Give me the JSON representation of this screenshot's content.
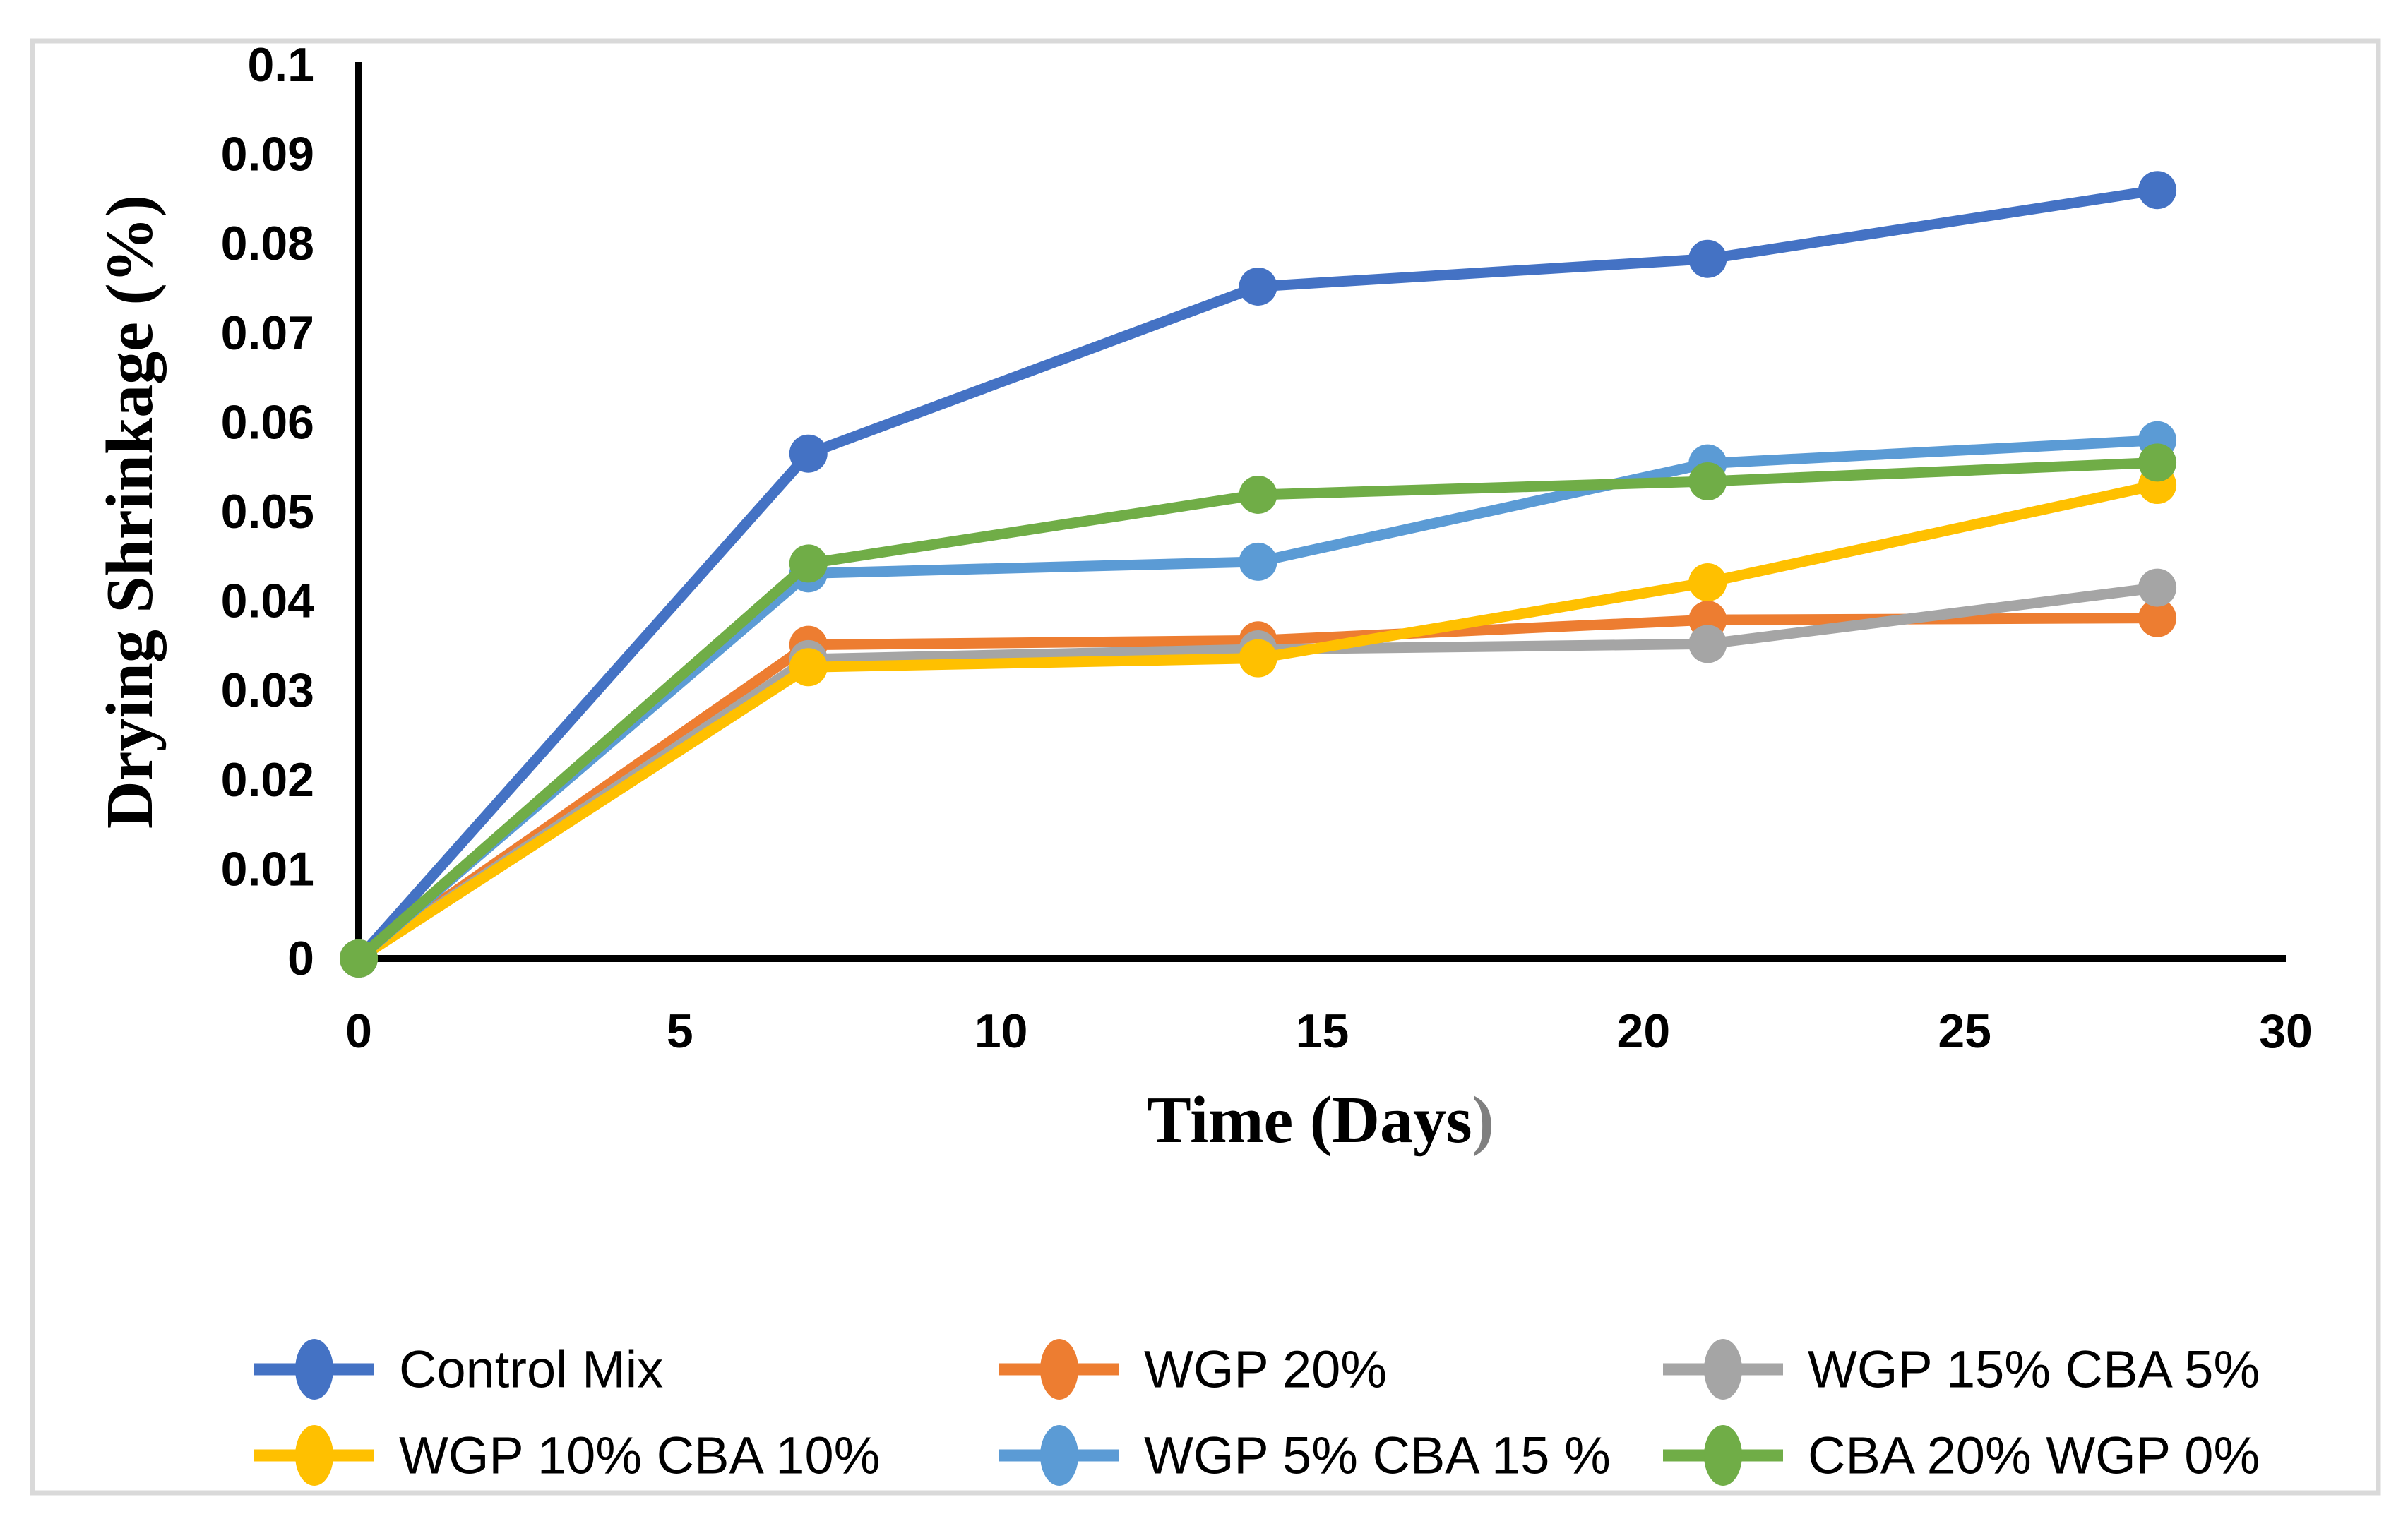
{
  "figure": {
    "background": "#FFFFFF",
    "frame_color": "#D9D9D9",
    "axis_color": "#000000",
    "xlabel_paren_color": "#7F7F7F"
  },
  "chart_data": {
    "type": "line",
    "title": "",
    "xlabel": "Time (Days)",
    "xlabel_parts": {
      "black": "Time (Days",
      "gray": ")"
    },
    "ylabel": "Drying Shrinkage (%)",
    "xlim": [
      0,
      30
    ],
    "ylim": [
      0,
      0.1
    ],
    "grid": false,
    "legend_position": "bottom",
    "x_ticks": [
      "0",
      "5",
      "10",
      "15",
      "20",
      "25",
      "30"
    ],
    "x_tick_values": [
      0,
      5,
      10,
      15,
      20,
      25,
      30
    ],
    "y_ticks": [
      "0",
      "0.01",
      "0.02",
      "0.03",
      "0.04",
      "0.05",
      "0.06",
      "0.07",
      "0.08",
      "0.09",
      "0.1"
    ],
    "y_tick_values": [
      0,
      0.01,
      0.02,
      0.03,
      0.04,
      0.05,
      0.06,
      0.07,
      0.08,
      0.09,
      0.1
    ],
    "x": [
      0,
      7,
      14,
      21,
      28
    ],
    "series": [
      {
        "name": "Control Mix",
        "color": "#4472C4",
        "values": [
          0,
          0.0565,
          0.0752,
          0.0783,
          0.086
        ]
      },
      {
        "name": "WGP 20%",
        "color": "#ED7D31",
        "values": [
          0,
          0.0351,
          0.0356,
          0.0379,
          0.0381
        ]
      },
      {
        "name": "WGP 15% CBA 5%",
        "color": "#A5A5A5",
        "values": [
          0,
          0.0335,
          0.0346,
          0.0352,
          0.0415
        ]
      },
      {
        "name": "WGP 10% CBA 10%",
        "color": "#FFC000",
        "values": [
          0,
          0.0326,
          0.0336,
          0.0421,
          0.053
        ]
      },
      {
        "name": "WGP 5% CBA 15 %",
        "color": "#5B9BD5",
        "values": [
          0,
          0.0431,
          0.0444,
          0.0554,
          0.058
        ]
      },
      {
        "name": "CBA 20% WGP 0%",
        "color": "#70AD47",
        "values": [
          0,
          0.0442,
          0.0519,
          0.0534,
          0.0555
        ]
      }
    ]
  }
}
